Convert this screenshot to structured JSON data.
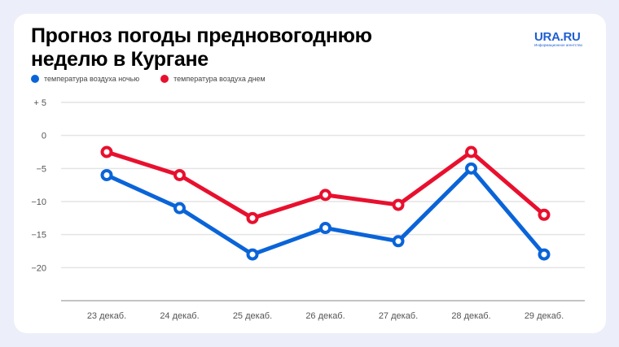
{
  "title_line1": "Прогноз погоды предновогоднюю",
  "title_line2": "неделю в Кургане",
  "logo": {
    "main": "URA.RU",
    "sub": "Информационное агентство"
  },
  "colors": {
    "night": "#0a64d8",
    "day": "#e8102e",
    "grid": "#e4e4e4",
    "axis": "#b0b0b0"
  },
  "chart_data": {
    "type": "line",
    "title": "Прогноз погоды предновогоднюю неделю в Кургане",
    "xlabel": "",
    "ylabel": "",
    "categories": [
      "23 декаб.",
      "24 декаб.",
      "25 декаб.",
      "26 декаб.",
      "27 декаб.",
      "28 декаб.",
      "29 декаб."
    ],
    "y_ticks": [
      5,
      0,
      -5,
      -10,
      -15,
      -20
    ],
    "y_tick_labels": [
      "+ 5",
      "0",
      "−5",
      "−10",
      "−15",
      "−20"
    ],
    "ylim": [
      -25,
      5
    ],
    "grid": true,
    "legend_position": "top-left",
    "series": [
      {
        "name": "температура воздуха ночью",
        "color": "#0a64d8",
        "values": [
          -6,
          -11,
          -18,
          -14,
          -16,
          -5,
          -18
        ]
      },
      {
        "name": "температура воздуха днем",
        "color": "#e8102e",
        "values": [
          -2.5,
          -6,
          -12.5,
          -9,
          -10.5,
          -2.5,
          -12
        ]
      }
    ]
  }
}
